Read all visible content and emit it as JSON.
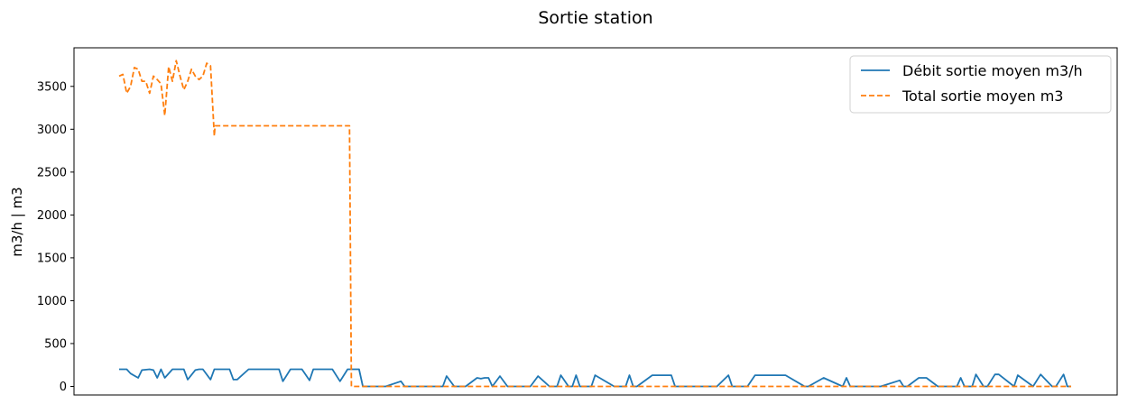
{
  "chart_data": {
    "type": "line",
    "title": "Sortie station",
    "xlabel": "",
    "ylabel": "m3/h | m3",
    "x_range": [
      0,
      250
    ],
    "ylim": [
      -100,
      3950
    ],
    "yticks": [
      0,
      500,
      1000,
      1500,
      2000,
      2500,
      3000,
      3500
    ],
    "legend_position": "top-right",
    "series": [
      {
        "name": "Débit sortie moyen m3/h",
        "color": "#1f77b4",
        "style": "solid",
        "x": [
          0,
          2,
          3,
          5,
          6,
          8,
          9,
          10,
          11,
          12,
          14,
          15,
          17,
          18,
          20,
          21,
          22,
          24,
          25,
          26,
          27,
          29,
          30,
          31,
          34,
          35,
          37,
          40,
          42,
          43,
          45,
          48,
          50,
          51,
          52,
          54,
          56,
          58,
          60,
          62,
          63,
          64,
          65,
          70,
          74,
          75,
          78,
          79,
          80,
          85,
          86,
          88,
          89,
          90,
          91,
          94,
          95,
          96,
          97,
          98,
          100,
          102,
          103,
          104,
          106,
          107,
          108,
          110,
          113,
          115,
          116,
          118,
          119,
          120,
          121,
          122,
          124,
          125,
          130,
          131,
          133,
          134,
          135,
          136,
          140,
          145,
          146,
          147,
          148,
          150,
          152,
          156,
          157,
          160,
          161,
          165,
          167,
          175,
          180,
          181,
          185,
          190,
          191,
          192,
          195,
          196,
          197,
          200,
          205,
          206,
          207,
          210,
          212,
          215,
          217,
          218,
          219,
          220,
          221,
          222,
          223,
          224,
          225,
          227,
          228,
          230,
          231,
          235,
          236,
          240,
          242,
          245,
          246,
          248,
          249,
          250
        ],
        "y": [
          200,
          200,
          150,
          100,
          190,
          200,
          190,
          100,
          200,
          100,
          200,
          200,
          200,
          80,
          190,
          200,
          200,
          80,
          200,
          200,
          200,
          200,
          80,
          80,
          200,
          200,
          200,
          200,
          200,
          60,
          200,
          200,
          70,
          200,
          200,
          200,
          200,
          60,
          200,
          200,
          200,
          0,
          0,
          0,
          60,
          0,
          0,
          0,
          0,
          0,
          120,
          0,
          0,
          0,
          0,
          100,
          90,
          100,
          100,
          0,
          120,
          0,
          0,
          0,
          0,
          0,
          0,
          120,
          0,
          0,
          130,
          0,
          0,
          130,
          0,
          0,
          0,
          130,
          0,
          0,
          0,
          130,
          0,
          0,
          130,
          130,
          0,
          0,
          0,
          0,
          0,
          0,
          0,
          130,
          0,
          0,
          130,
          130,
          0,
          0,
          100,
          0,
          100,
          0,
          0,
          0,
          0,
          0,
          70,
          0,
          0,
          100,
          100,
          0,
          0,
          0,
          0,
          0,
          100,
          0,
          0,
          0,
          140,
          0,
          0,
          140,
          140,
          0,
          130,
          0,
          140,
          0,
          0,
          140,
          0,
          0
        ],
        "y_note": "values estimated from gridlines"
      },
      {
        "name": "Total sortie moyen m3",
        "color": "#ff7f0e",
        "style": "dashed",
        "x": [
          0,
          1,
          2,
          3,
          4,
          5,
          6,
          7,
          8,
          9,
          10,
          11,
          12,
          13,
          14,
          15,
          16,
          17,
          18,
          19,
          20,
          21,
          22,
          23,
          24,
          25,
          25.2,
          60.5,
          61,
          62,
          250
        ],
        "y": [
          3620,
          3640,
          3420,
          3500,
          3720,
          3700,
          3560,
          3560,
          3420,
          3620,
          3580,
          3530,
          3160,
          3730,
          3560,
          3800,
          3620,
          3460,
          3560,
          3700,
          3620,
          3580,
          3620,
          3770,
          3740,
          2920,
          3040,
          3040,
          0,
          0,
          0
        ],
        "y_note": "values estimated from gridlines"
      }
    ]
  }
}
